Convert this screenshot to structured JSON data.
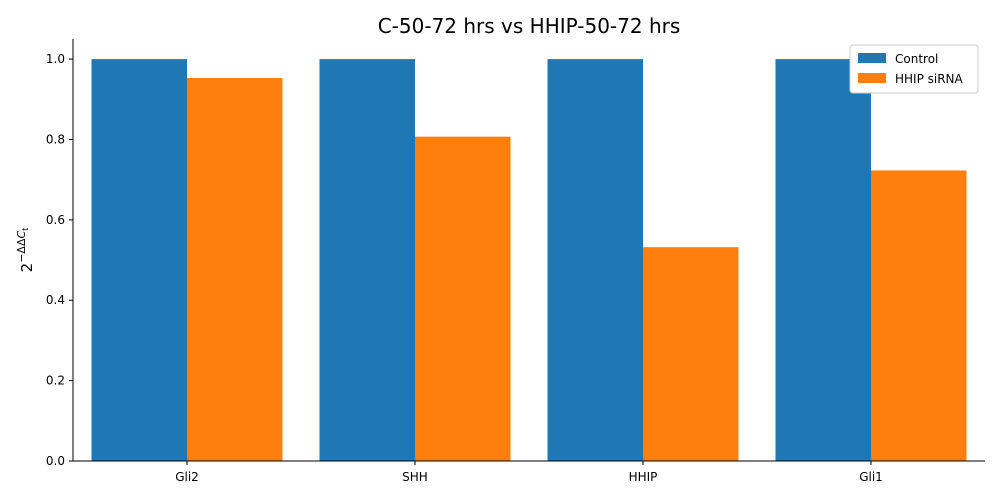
{
  "chart_data": {
    "type": "bar",
    "title": "C-50-72 hrs vs HHIP-50-72 hrs",
    "xlabel": "",
    "ylabel": "2^{−ΔΔC_t}",
    "ylabel_parts": {
      "base": "2",
      "exponent": "−ΔΔ",
      "exponent_italic": "C",
      "subscript": "t"
    },
    "categories": [
      "Gli2",
      "SHH",
      "HHIP",
      "Gli1"
    ],
    "series": [
      {
        "name": "Control",
        "color": "#1f77b4",
        "values": [
          1.0,
          1.0,
          1.0,
          1.0
        ]
      },
      {
        "name": "HHIP siRNA",
        "color": "#ff7f0e",
        "values": [
          0.953,
          0.807,
          0.532,
          0.723
        ]
      }
    ],
    "ylim": [
      0,
      1.05
    ],
    "yticks": [
      0.0,
      0.2,
      0.4,
      0.6,
      0.8,
      1.0
    ],
    "ytick_labels": [
      "0.0",
      "0.2",
      "0.4",
      "0.6",
      "0.8",
      "1.0"
    ],
    "grid": false,
    "legend_position": "top-right"
  }
}
